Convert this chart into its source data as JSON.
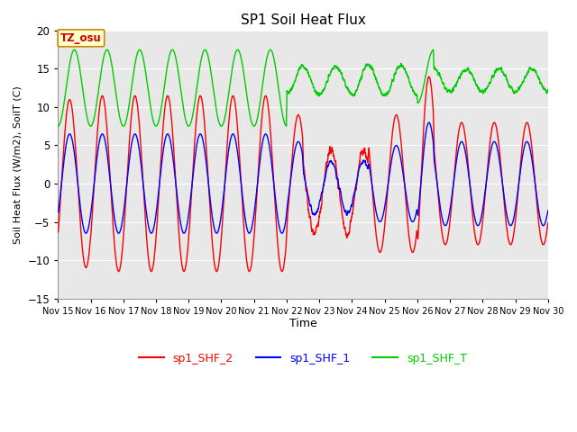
{
  "title": "SP1 Soil Heat Flux",
  "xlabel": "Time",
  "ylabel": "Soil Heat Flux (W/m2), SoilT (C)",
  "ylim": [
    -15,
    20
  ],
  "xlim": [
    0,
    360
  ],
  "x_tick_labels": [
    "Nov 15",
    "Nov 16",
    "Nov 17",
    "Nov 18",
    "Nov 19",
    "Nov 20",
    "Nov 21",
    "Nov 22",
    "Nov 23",
    "Nov 24",
    "Nov 25",
    "Nov 26",
    "Nov 27",
    "Nov 28",
    "Nov 29",
    "Nov 30"
  ],
  "x_tick_positions": [
    0,
    24,
    48,
    72,
    96,
    120,
    144,
    168,
    192,
    216,
    240,
    264,
    288,
    312,
    336,
    360
  ],
  "y_ticks": [
    -15,
    -10,
    -5,
    0,
    5,
    10,
    15,
    20
  ],
  "bg_color": "#ffffff",
  "plot_bg_color": "#e8e8e8",
  "grid_color": "#ffffff",
  "line_colors": {
    "sp1_SHF_2": "#ff0000",
    "sp1_SHF_1": "#0000ff",
    "sp1_SHF_T": "#00cc00"
  },
  "tz_box_text": "TZ_osu",
  "tz_box_bg": "#ffffcc",
  "tz_box_border": "#cc8800",
  "fig_width": 6.4,
  "fig_height": 4.8,
  "dpi": 100
}
